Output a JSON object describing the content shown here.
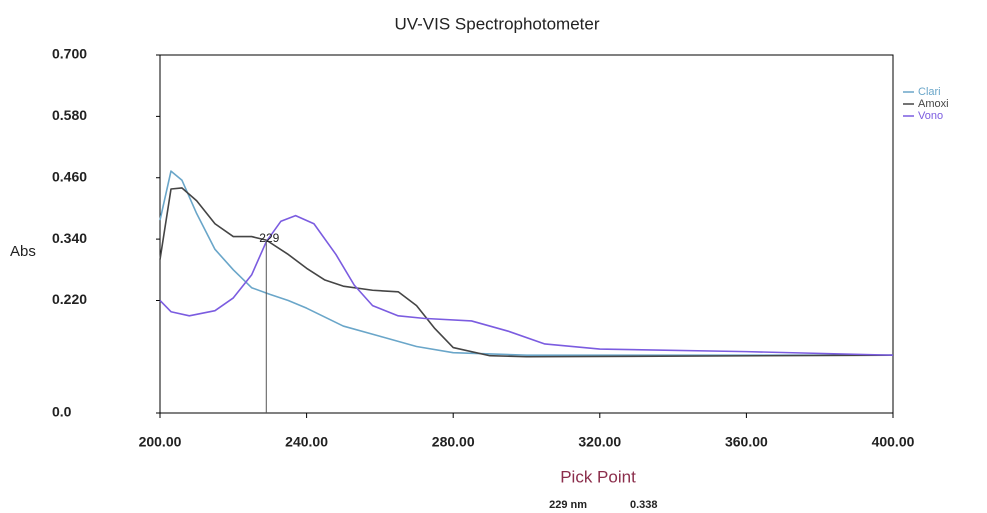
{
  "chart_data": {
    "type": "line",
    "title": "UV-VIS Spectrophotometer",
    "ylabel": "Abs",
    "xlim": [
      200,
      400
    ],
    "xticks": [
      {
        "value": 200,
        "label": "200.00"
      },
      {
        "value": 240,
        "label": "240.00"
      },
      {
        "value": 280,
        "label": "280.00"
      },
      {
        "value": 320,
        "label": "320.00"
      },
      {
        "value": 360,
        "label": "360.00"
      },
      {
        "value": 400,
        "label": "400.00"
      }
    ],
    "ylim": [
      0,
      0.7
    ],
    "yticks": [
      {
        "value": 0,
        "label": "0.0"
      },
      {
        "value": 0.22,
        "label": "0.220"
      },
      {
        "value": 0.34,
        "label": "0.340"
      },
      {
        "value": 0.46,
        "label": "0.460"
      },
      {
        "value": 0.58,
        "label": "0.580"
      },
      {
        "value": 0.7,
        "label": "0.700"
      }
    ],
    "legend": "upper right",
    "series": [
      {
        "name": "Clari",
        "color": "#6aa6c9",
        "x": [
          200,
          203,
          206,
          210,
          215,
          220,
          225,
          230,
          235,
          240,
          250,
          260,
          270,
          280,
          300,
          400
        ],
        "values": [
          0.377,
          0.473,
          0.455,
          0.39,
          0.32,
          0.28,
          0.245,
          0.232,
          0.22,
          0.205,
          0.17,
          0.15,
          0.13,
          0.118,
          0.113,
          0.113
        ]
      },
      {
        "name": "Amoxi",
        "color": "#454545",
        "x": [
          200,
          203,
          206,
          210,
          215,
          220,
          225,
          229,
          235,
          240,
          245,
          250,
          258,
          265,
          270,
          275,
          280,
          290,
          300,
          400
        ],
        "values": [
          0.3,
          0.438,
          0.44,
          0.415,
          0.37,
          0.345,
          0.345,
          0.338,
          0.31,
          0.283,
          0.26,
          0.248,
          0.24,
          0.237,
          0.21,
          0.165,
          0.128,
          0.112,
          0.11,
          0.113
        ]
      },
      {
        "name": "Vono",
        "color": "#7b5ce0",
        "x": [
          200,
          203,
          208,
          215,
          220,
          225,
          229,
          233,
          237,
          242,
          248,
          253,
          258,
          265,
          272,
          285,
          295,
          305,
          320,
          360,
          400
        ],
        "values": [
          0.22,
          0.198,
          0.19,
          0.2,
          0.225,
          0.27,
          0.335,
          0.375,
          0.386,
          0.37,
          0.31,
          0.25,
          0.21,
          0.19,
          0.185,
          0.18,
          0.16,
          0.135,
          0.125,
          0.12,
          0.113
        ]
      }
    ],
    "pick": {
      "title": "Pick Point",
      "annotation": "229",
      "x": 229,
      "x_label": "229 nm",
      "value": 0.338,
      "value_label": "0.338"
    }
  }
}
